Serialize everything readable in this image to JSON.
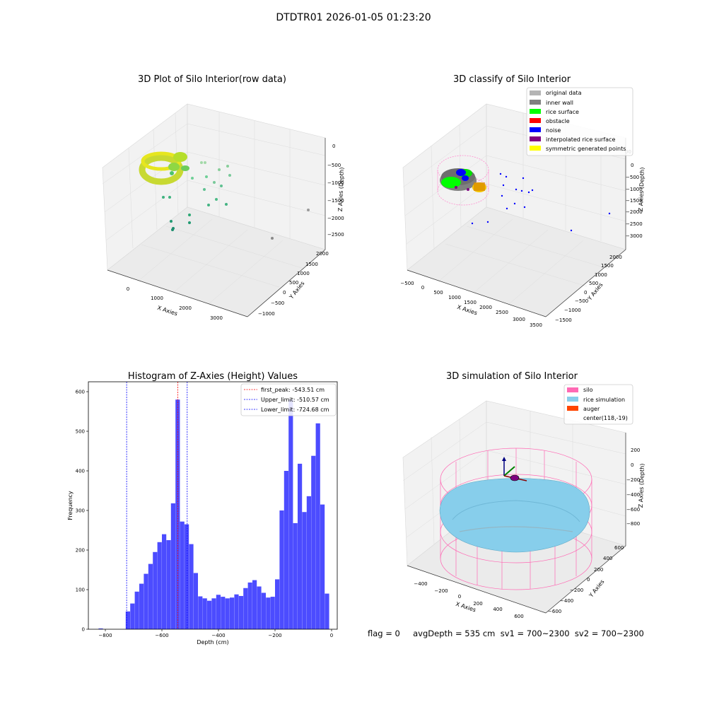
{
  "figure_title": "DTDTR01 2026-01-05 01:23:20",
  "footer": "flag = 0     avgDepth = 535 cm  sv1 = 700~2300  sv2 = 700~2300",
  "panels": {
    "raw": {
      "title": "3D Plot of Silo Interior(row data)",
      "xlabel": "X Axies",
      "ylabel": "Y Axies",
      "zlabel": "Z Axies (Depth)",
      "xticks": [
        "0",
        "1000",
        "2000",
        "3000"
      ],
      "yticks": [
        "−1000",
        "−500",
        "0",
        "500",
        "1000",
        "1500",
        "2000"
      ],
      "zticks": [
        "0",
        "−500",
        "−1000",
        "−1500",
        "−2000",
        "−2500"
      ]
    },
    "classify": {
      "title": "3D classify of Silo Interior",
      "xlabel": "X Axies",
      "ylabel": "Y Axies",
      "zlabel": "Z Axies (Depth)",
      "xticks": [
        "−500",
        "0",
        "500",
        "1000",
        "1500",
        "2000",
        "2500",
        "3000",
        "3500"
      ],
      "yticks": [
        "−1500",
        "−1000",
        "−500",
        "0",
        "500",
        "1000",
        "1500",
        "2000"
      ],
      "zticks": [
        "0",
        "−500",
        "−1000",
        "−1500",
        "−2000",
        "−2500",
        "−3000"
      ],
      "legend": [
        {
          "label": "original data",
          "color": "#b4b4b4"
        },
        {
          "label": "inner wall",
          "color": "#808080"
        },
        {
          "label": "rice surface",
          "color": "#00ff00"
        },
        {
          "label": "obstacle",
          "color": "#ff0000"
        },
        {
          "label": "noise",
          "color": "#0000ff"
        },
        {
          "label": "interpolated rice surface",
          "color": "#800080"
        },
        {
          "label": "symmetric generated points",
          "color": "#ffff00"
        }
      ]
    },
    "simulation": {
      "title": "3D simulation of Silo Interior",
      "xlabel": "X Axies",
      "ylabel": "Y Axies",
      "zlabel": "Z Axies (Depth)",
      "xticks": [
        "−400",
        "−200",
        "0",
        "200",
        "400",
        "600"
      ],
      "yticks": [
        "−600",
        "−400",
        "−200",
        "0",
        "200",
        "400",
        "600"
      ],
      "zticks": [
        "200",
        "0",
        "−200",
        "−400",
        "−600",
        "−800"
      ],
      "legend": [
        {
          "label": "silo",
          "color": "#ff69b4"
        },
        {
          "label": "rice simulation",
          "color": "#87ceeb"
        },
        {
          "label": "auger",
          "color": "#ff4500"
        },
        {
          "label": "center(118,-19)",
          "color": ""
        }
      ]
    }
  },
  "chart_data": [
    {
      "type": "histogram",
      "title": "Histogram of Z-Axies (Height) Values",
      "xlabel": "Depth (cm)",
      "ylabel": "Frequency",
      "xlim": [
        -860,
        20
      ],
      "ylim": [
        0,
        625
      ],
      "xticks": [
        -800,
        -600,
        -400,
        -200,
        0
      ],
      "yticks": [
        0,
        100,
        200,
        300,
        400,
        500,
        600
      ],
      "bin_width": 16,
      "bins": [
        {
          "x0": -824,
          "count": 2
        },
        {
          "x0": -728,
          "count": 45
        },
        {
          "x0": -712,
          "count": 65
        },
        {
          "x0": -696,
          "count": 95
        },
        {
          "x0": -680,
          "count": 115
        },
        {
          "x0": -664,
          "count": 140
        },
        {
          "x0": -648,
          "count": 165
        },
        {
          "x0": -632,
          "count": 195
        },
        {
          "x0": -616,
          "count": 220
        },
        {
          "x0": -600,
          "count": 240
        },
        {
          "x0": -584,
          "count": 225
        },
        {
          "x0": -568,
          "count": 318
        },
        {
          "x0": -552,
          "count": 580
        },
        {
          "x0": -536,
          "count": 272
        },
        {
          "x0": -520,
          "count": 265
        },
        {
          "x0": -504,
          "count": 215
        },
        {
          "x0": -488,
          "count": 142
        },
        {
          "x0": -472,
          "count": 83
        },
        {
          "x0": -456,
          "count": 78
        },
        {
          "x0": -440,
          "count": 72
        },
        {
          "x0": -424,
          "count": 78
        },
        {
          "x0": -408,
          "count": 87
        },
        {
          "x0": -392,
          "count": 82
        },
        {
          "x0": -376,
          "count": 78
        },
        {
          "x0": -360,
          "count": 80
        },
        {
          "x0": -344,
          "count": 88
        },
        {
          "x0": -328,
          "count": 84
        },
        {
          "x0": -312,
          "count": 104
        },
        {
          "x0": -296,
          "count": 118
        },
        {
          "x0": -280,
          "count": 124
        },
        {
          "x0": -264,
          "count": 108
        },
        {
          "x0": -248,
          "count": 92
        },
        {
          "x0": -232,
          "count": 80
        },
        {
          "x0": -216,
          "count": 82
        },
        {
          "x0": -200,
          "count": 126
        },
        {
          "x0": -184,
          "count": 300
        },
        {
          "x0": -168,
          "count": 400
        },
        {
          "x0": -152,
          "count": 580
        },
        {
          "x0": -136,
          "count": 268
        },
        {
          "x0": -120,
          "count": 418
        },
        {
          "x0": -104,
          "count": 296
        },
        {
          "x0": -88,
          "count": 336
        },
        {
          "x0": -72,
          "count": 438
        },
        {
          "x0": -56,
          "count": 520
        },
        {
          "x0": -40,
          "count": 315
        },
        {
          "x0": -24,
          "count": 90
        }
      ],
      "bar_color": "#0000ff",
      "vlines": [
        {
          "label": "first_peak: -543.51 cm",
          "x": -543.51,
          "color": "#ff0000"
        },
        {
          "label": "Upper_limit: -510.57 cm",
          "x": -510.57,
          "color": "#0000ff"
        },
        {
          "label": "Lower_limit: -724.68 cm",
          "x": -724.68,
          "color": "#0000ff"
        }
      ],
      "legend_position": "top-right"
    }
  ]
}
